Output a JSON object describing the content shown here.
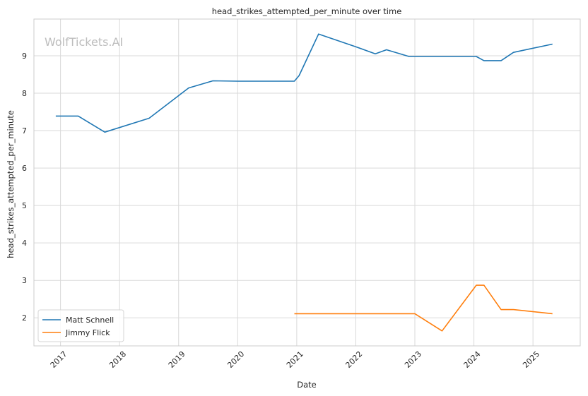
{
  "chart_data": {
    "type": "line",
    "title": "head_strikes_attempted_per_minute over time",
    "xlabel": "Date",
    "ylabel": "head_strikes_attempted_per_minute",
    "watermark": "WolfTickets.AI",
    "xlim": [
      2016.55,
      2025.8
    ],
    "ylim": [
      1.25,
      9.98
    ],
    "x_ticks": [
      2017,
      2018,
      2019,
      2020,
      2021,
      2022,
      2023,
      2024,
      2025
    ],
    "x_tick_labels": [
      "2017",
      "2018",
      "2019",
      "2020",
      "2021",
      "2022",
      "2023",
      "2024",
      "2025"
    ],
    "y_ticks": [
      2,
      3,
      4,
      5,
      6,
      7,
      8,
      9
    ],
    "y_tick_labels": [
      "2",
      "3",
      "4",
      "5",
      "6",
      "7",
      "8",
      "9"
    ],
    "grid": true,
    "legend_position": "lower-left",
    "series": [
      {
        "name": "Matt Schnell",
        "color": "#1f77b4",
        "x": [
          2016.92,
          2017.3,
          2017.75,
          2018.5,
          2019.17,
          2019.58,
          2020.0,
          2020.5,
          2020.96,
          2021.04,
          2021.37,
          2022.0,
          2022.33,
          2022.52,
          2022.9,
          2023.5,
          2024.04,
          2024.17,
          2024.46,
          2024.67,
          2025.33
        ],
        "y": [
          7.39,
          7.39,
          6.96,
          7.33,
          8.14,
          8.33,
          8.32,
          8.32,
          8.32,
          8.47,
          9.58,
          9.24,
          9.05,
          9.16,
          8.98,
          8.98,
          8.98,
          8.87,
          8.87,
          9.09,
          9.31
        ]
      },
      {
        "name": "Jimmy Flick",
        "color": "#ff7f0e",
        "x": [
          2020.96,
          2021.5,
          2022.0,
          2022.5,
          2023.0,
          2023.46,
          2024.04,
          2024.17,
          2024.46,
          2024.67,
          2025.33
        ],
        "y": [
          2.11,
          2.11,
          2.11,
          2.11,
          2.11,
          1.65,
          2.87,
          2.87,
          2.22,
          2.22,
          2.11
        ]
      }
    ]
  }
}
